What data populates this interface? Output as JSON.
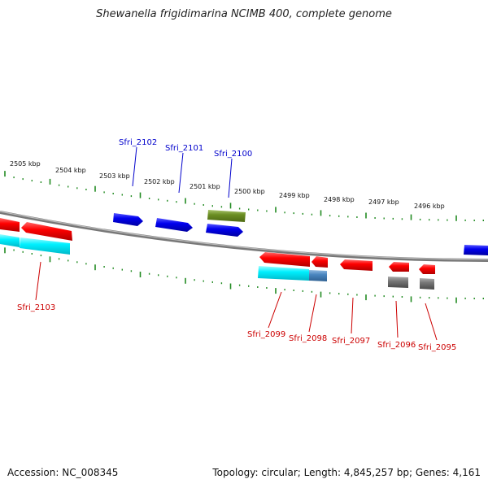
{
  "title": "Shewanella frigidimarina NCIMB 400, complete genome",
  "accession": "Accession: NC_008345",
  "topology": "Topology: circular; Length: 4,845,257 bp; Genes: 4,161",
  "scale_labels": [
    "2505 kbp",
    "2504 kbp",
    "2503 kbp",
    "2502 kbp",
    "2501 kbp",
    "2500 kbp",
    "2499 kbp",
    "2498 kbp",
    "2497 kbp",
    "2496 kbp"
  ],
  "gene_labels": {
    "top": [
      "Sfri_2102",
      "Sfri_2101",
      "Sfri_2100"
    ],
    "bottom": [
      "Sfri_2103",
      "Sfri_2099",
      "Sfri_2098",
      "Sfri_2097",
      "Sfri_2096",
      "Sfri_2095"
    ]
  },
  "colors": {
    "forward_cds": "#0000ee",
    "reverse_cds": "#ff0000",
    "rna": "#00e5ee",
    "other": "#6b8e23",
    "pseudo": "#7a7a7a",
    "tick": "#228b22",
    "backbone": "#888888",
    "top_label": "#0000cc",
    "bottom_label": "#cc0000"
  }
}
